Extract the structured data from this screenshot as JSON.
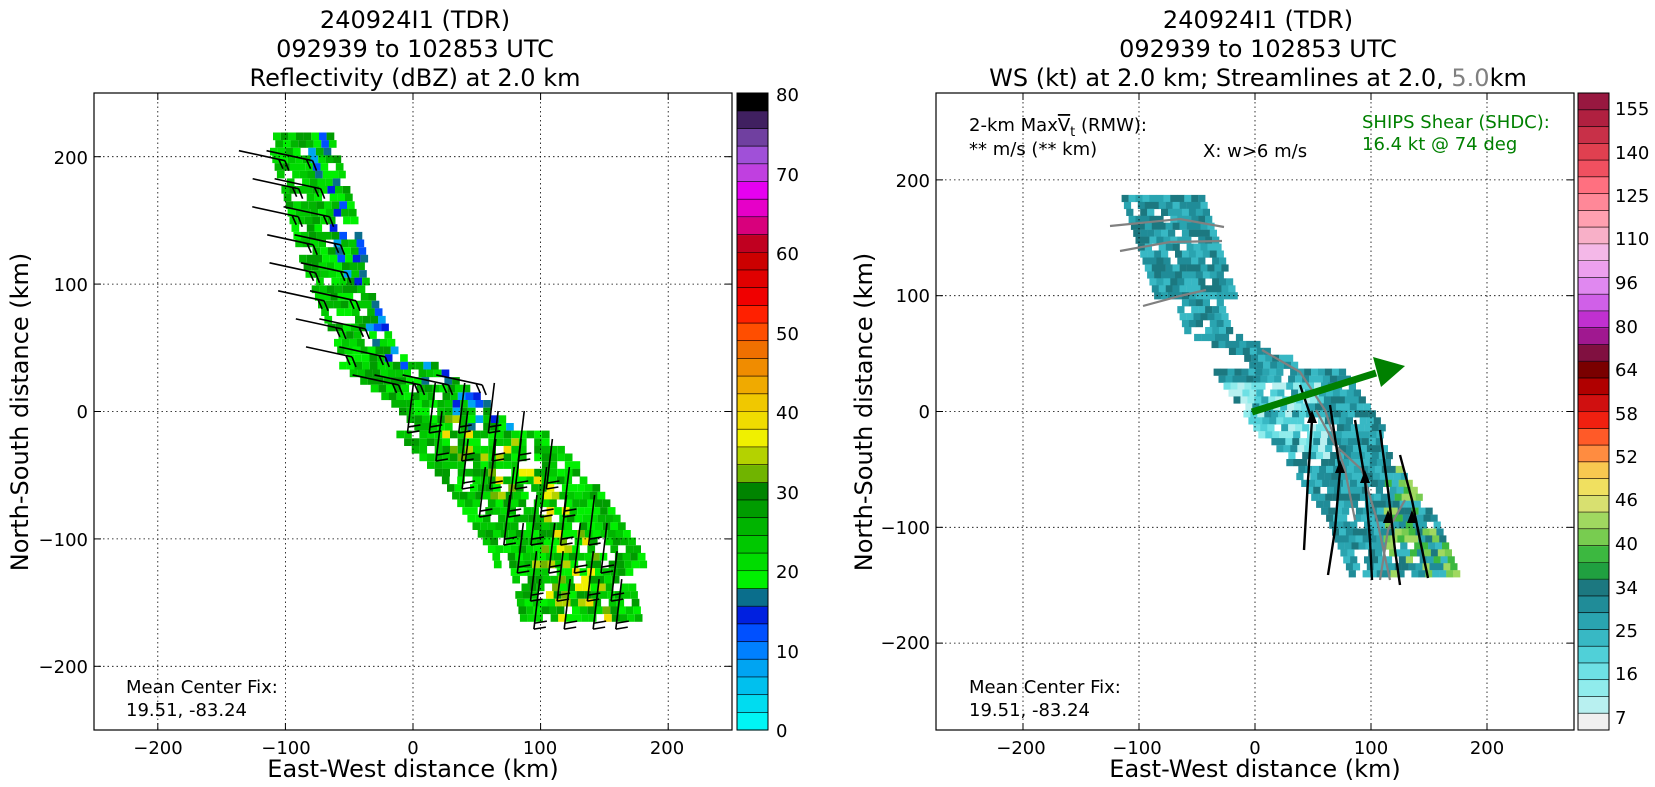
{
  "left_panel": {
    "title_line1": "240924I1 (TDR)",
    "title_line2": "092939 to 102853 UTC",
    "title_line3": "Reflectivity (dBZ) at 2.0 km",
    "xlabel": "East-West distance (km)",
    "ylabel": "North-South distance (km)",
    "x_ticks": [
      "−200",
      "−100",
      "0",
      "100",
      "200"
    ],
    "y_ticks": [
      "200",
      "100",
      "0",
      "−100",
      "−200"
    ],
    "center_fix_label": "Mean Center Fix:",
    "center_fix_value": "19.51, -83.24",
    "colorbar_labels": [
      "80",
      "70",
      "60",
      "50",
      "40",
      "30",
      "20",
      "10",
      "0"
    ]
  },
  "right_panel": {
    "title_line1": "240924I1 (TDR)",
    "title_line2": "092939 to 102853 UTC",
    "title_line3_a": "WS (kt) at 2.0 km; Streamlines at 2.0, ",
    "title_line3_b": "5.0",
    "title_line3_c": "km",
    "xlabel": "East-West distance (km)",
    "ylabel": "North-South distance (km)",
    "x_ticks": [
      "−200",
      "−100",
      "0",
      "100",
      "200"
    ],
    "y_ticks": [
      "200",
      "100",
      "0",
      "−100",
      "−200"
    ],
    "maxvt_line1_a": "2-km Max",
    "maxvt_line1_b": "V",
    "maxvt_line1_c": "t",
    "maxvt_line1_d": " (RMW):",
    "maxvt_line2": "** m/s (** km)",
    "w_note": "X: w>6 m/s",
    "ships_line1": "SHIPS Shear (SHDC):",
    "ships_line2": "16.4 kt @ 74 deg",
    "center_fix_label": "Mean Center Fix:",
    "center_fix_value": "19.51, -83.24",
    "colorbar_labels": [
      "155",
      "140",
      "125",
      "110",
      "96",
      "80",
      "64",
      "58",
      "52",
      "46",
      "40",
      "34",
      "25",
      "16",
      "7"
    ]
  },
  "colors": {
    "shear_arrow": "#008000",
    "ships_text": "#008000",
    "streamline_low": "#000000",
    "streamline_mid": "#808080"
  },
  "chart_data": [
    {
      "type": "heatmap",
      "title": "Reflectivity (dBZ) at 2.0 km",
      "xlabel": "East-West distance (km)",
      "ylabel": "North-South distance (km)",
      "xlim": [
        -250,
        250
      ],
      "ylim": [
        -250,
        250
      ],
      "grid": true,
      "colorbar": {
        "label": "dBZ",
        "range": [
          0,
          80
        ],
        "ticks": [
          0,
          10,
          20,
          30,
          40,
          50,
          60,
          70,
          80
        ]
      },
      "echo_band_centerline": [
        [
          -90,
          220
        ],
        [
          -75,
          170
        ],
        [
          -60,
          110
        ],
        [
          -35,
          50
        ],
        [
          20,
          10
        ],
        [
          80,
          -50
        ],
        [
          120,
          -110
        ],
        [
          130,
          -160
        ]
      ],
      "wind_barbs": true,
      "center_fix": [
        19.51,
        -83.24
      ]
    },
    {
      "type": "heatmap",
      "title": "WS (kt) at 2.0 km; Streamlines at 2.0, 5.0km",
      "xlabel": "East-West distance (km)",
      "ylabel": "North-South distance (km)",
      "xlim": [
        -275,
        275
      ],
      "ylim": [
        -275,
        275
      ],
      "grid": true,
      "colorbar": {
        "label": "kt",
        "ticks": [
          7,
          16,
          25,
          34,
          40,
          46,
          52,
          58,
          64,
          80,
          96,
          110,
          125,
          140,
          155
        ]
      },
      "shear": {
        "speed_kt": 16.4,
        "direction_deg": 74,
        "arrow_from": [
          0,
          0
        ],
        "arrow_to": [
          130,
          35
        ]
      },
      "wind_band_centerline": [
        [
          -80,
          190
        ],
        [
          -60,
          130
        ],
        [
          -40,
          70
        ],
        [
          10,
          50
        ],
        [
          60,
          -20
        ],
        [
          110,
          -90
        ],
        [
          130,
          -140
        ]
      ],
      "center_fix": [
        19.51,
        -83.24
      ]
    }
  ]
}
